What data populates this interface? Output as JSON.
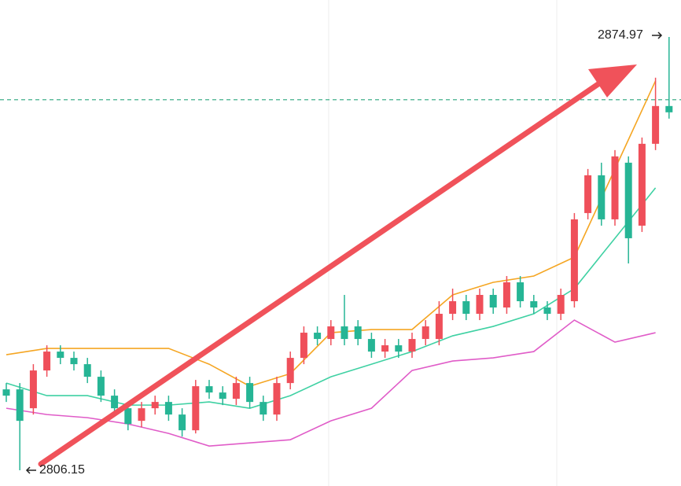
{
  "chart_data": {
    "type": "candlestick",
    "ylim": [
      2803.65,
      2880.84
    ],
    "up_color": "#ef4f5a",
    "down_color": "#26b595",
    "candles": {
      "open": [
        2819,
        2819,
        2816,
        2822,
        2825,
        2824,
        2823,
        2821,
        2818,
        2816,
        2814,
        2816,
        2817,
        2815,
        2812.5,
        2819.5,
        2818.5,
        2817.5,
        2820,
        2817,
        2815,
        2820,
        2824,
        2828,
        2827,
        2829,
        2829,
        2827,
        2825,
        2826,
        2825,
        2827,
        2827,
        2831,
        2833,
        2831,
        2834,
        2832,
        2836,
        2833,
        2832,
        2831,
        2833,
        2847,
        2853,
        2846,
        2855,
        2845,
        2858,
        2864
      ],
      "close": [
        2818,
        2814,
        2822,
        2825,
        2824,
        2823,
        2821,
        2818,
        2816,
        2813.5,
        2816,
        2817,
        2815,
        2812.5,
        2819.5,
        2818.5,
        2817.5,
        2820,
        2817,
        2815,
        2820,
        2824,
        2828,
        2827,
        2829,
        2827,
        2827,
        2825,
        2826,
        2825,
        2827,
        2829,
        2831,
        2833,
        2831,
        2834,
        2832,
        2836,
        2833,
        2832,
        2831,
        2834,
        2846,
        2853,
        2846,
        2856,
        2843,
        2858,
        2864,
        2863
      ],
      "high": [
        2820,
        2820,
        2823,
        2826,
        2826,
        2825,
        2824,
        2822,
        2819,
        2817,
        2817,
        2818,
        2818,
        2816,
        2820.5,
        2820.5,
        2819.5,
        2821,
        2821,
        2818,
        2821,
        2825,
        2829,
        2829,
        2830,
        2834,
        2830,
        2828,
        2827,
        2827,
        2828,
        2830,
        2833,
        2835,
        2834,
        2835,
        2835,
        2837,
        2837,
        2834,
        2833,
        2835,
        2847,
        2854,
        2855,
        2857,
        2856,
        2859,
        2868.5,
        2874.97
      ],
      "low": [
        2817,
        2806.15,
        2815,
        2821,
        2823,
        2822,
        2820,
        2817,
        2815,
        2812.5,
        2813,
        2815,
        2814,
        2811.5,
        2812,
        2817.5,
        2816.5,
        2816.5,
        2816,
        2814,
        2814,
        2819,
        2823,
        2826,
        2826,
        2826,
        2826,
        2824,
        2824,
        2824,
        2824,
        2826,
        2826,
        2830,
        2830,
        2830,
        2831,
        2831,
        2832,
        2831,
        2830,
        2830,
        2832,
        2846,
        2845,
        2845,
        2839,
        2844,
        2857,
        2862
      ]
    },
    "lines": [
      {
        "color": "#f5a623",
        "x": [
          0,
          3,
          6,
          9,
          12,
          15,
          18,
          21,
          24,
          27,
          30,
          33,
          36,
          39,
          42,
          45,
          48
        ],
        "values": [
          2824.5,
          2825.5,
          2825.5,
          2825.5,
          2825.5,
          2823,
          2819.5,
          2821.5,
          2828,
          2828.5,
          2828.5,
          2834,
          2836,
          2837,
          2840,
          2854,
          2868
        ]
      },
      {
        "color": "#3fd1a3",
        "x": [
          0,
          3,
          6,
          9,
          12,
          15,
          18,
          21,
          24,
          27,
          30,
          33,
          36,
          39,
          42,
          45,
          48
        ],
        "values": [
          2820,
          2818,
          2818,
          2816.5,
          2816.5,
          2817,
          2816,
          2818,
          2821,
          2823,
          2825,
          2827.5,
          2829,
          2831,
          2835,
          2843,
          2851
        ]
      },
      {
        "color": "#e05cc8",
        "x": [
          0,
          3,
          6,
          9,
          12,
          15,
          18,
          21,
          24,
          27,
          30,
          33,
          36,
          39,
          42,
          45,
          48
        ],
        "values": [
          2816,
          2815,
          2814.5,
          2813.5,
          2812,
          2810,
          2810.5,
          2811,
          2814,
          2816,
          2822,
          2823.5,
          2824,
          2825,
          2830,
          2826.5,
          2828
        ]
      }
    ],
    "price_line": 2865
  }
}
